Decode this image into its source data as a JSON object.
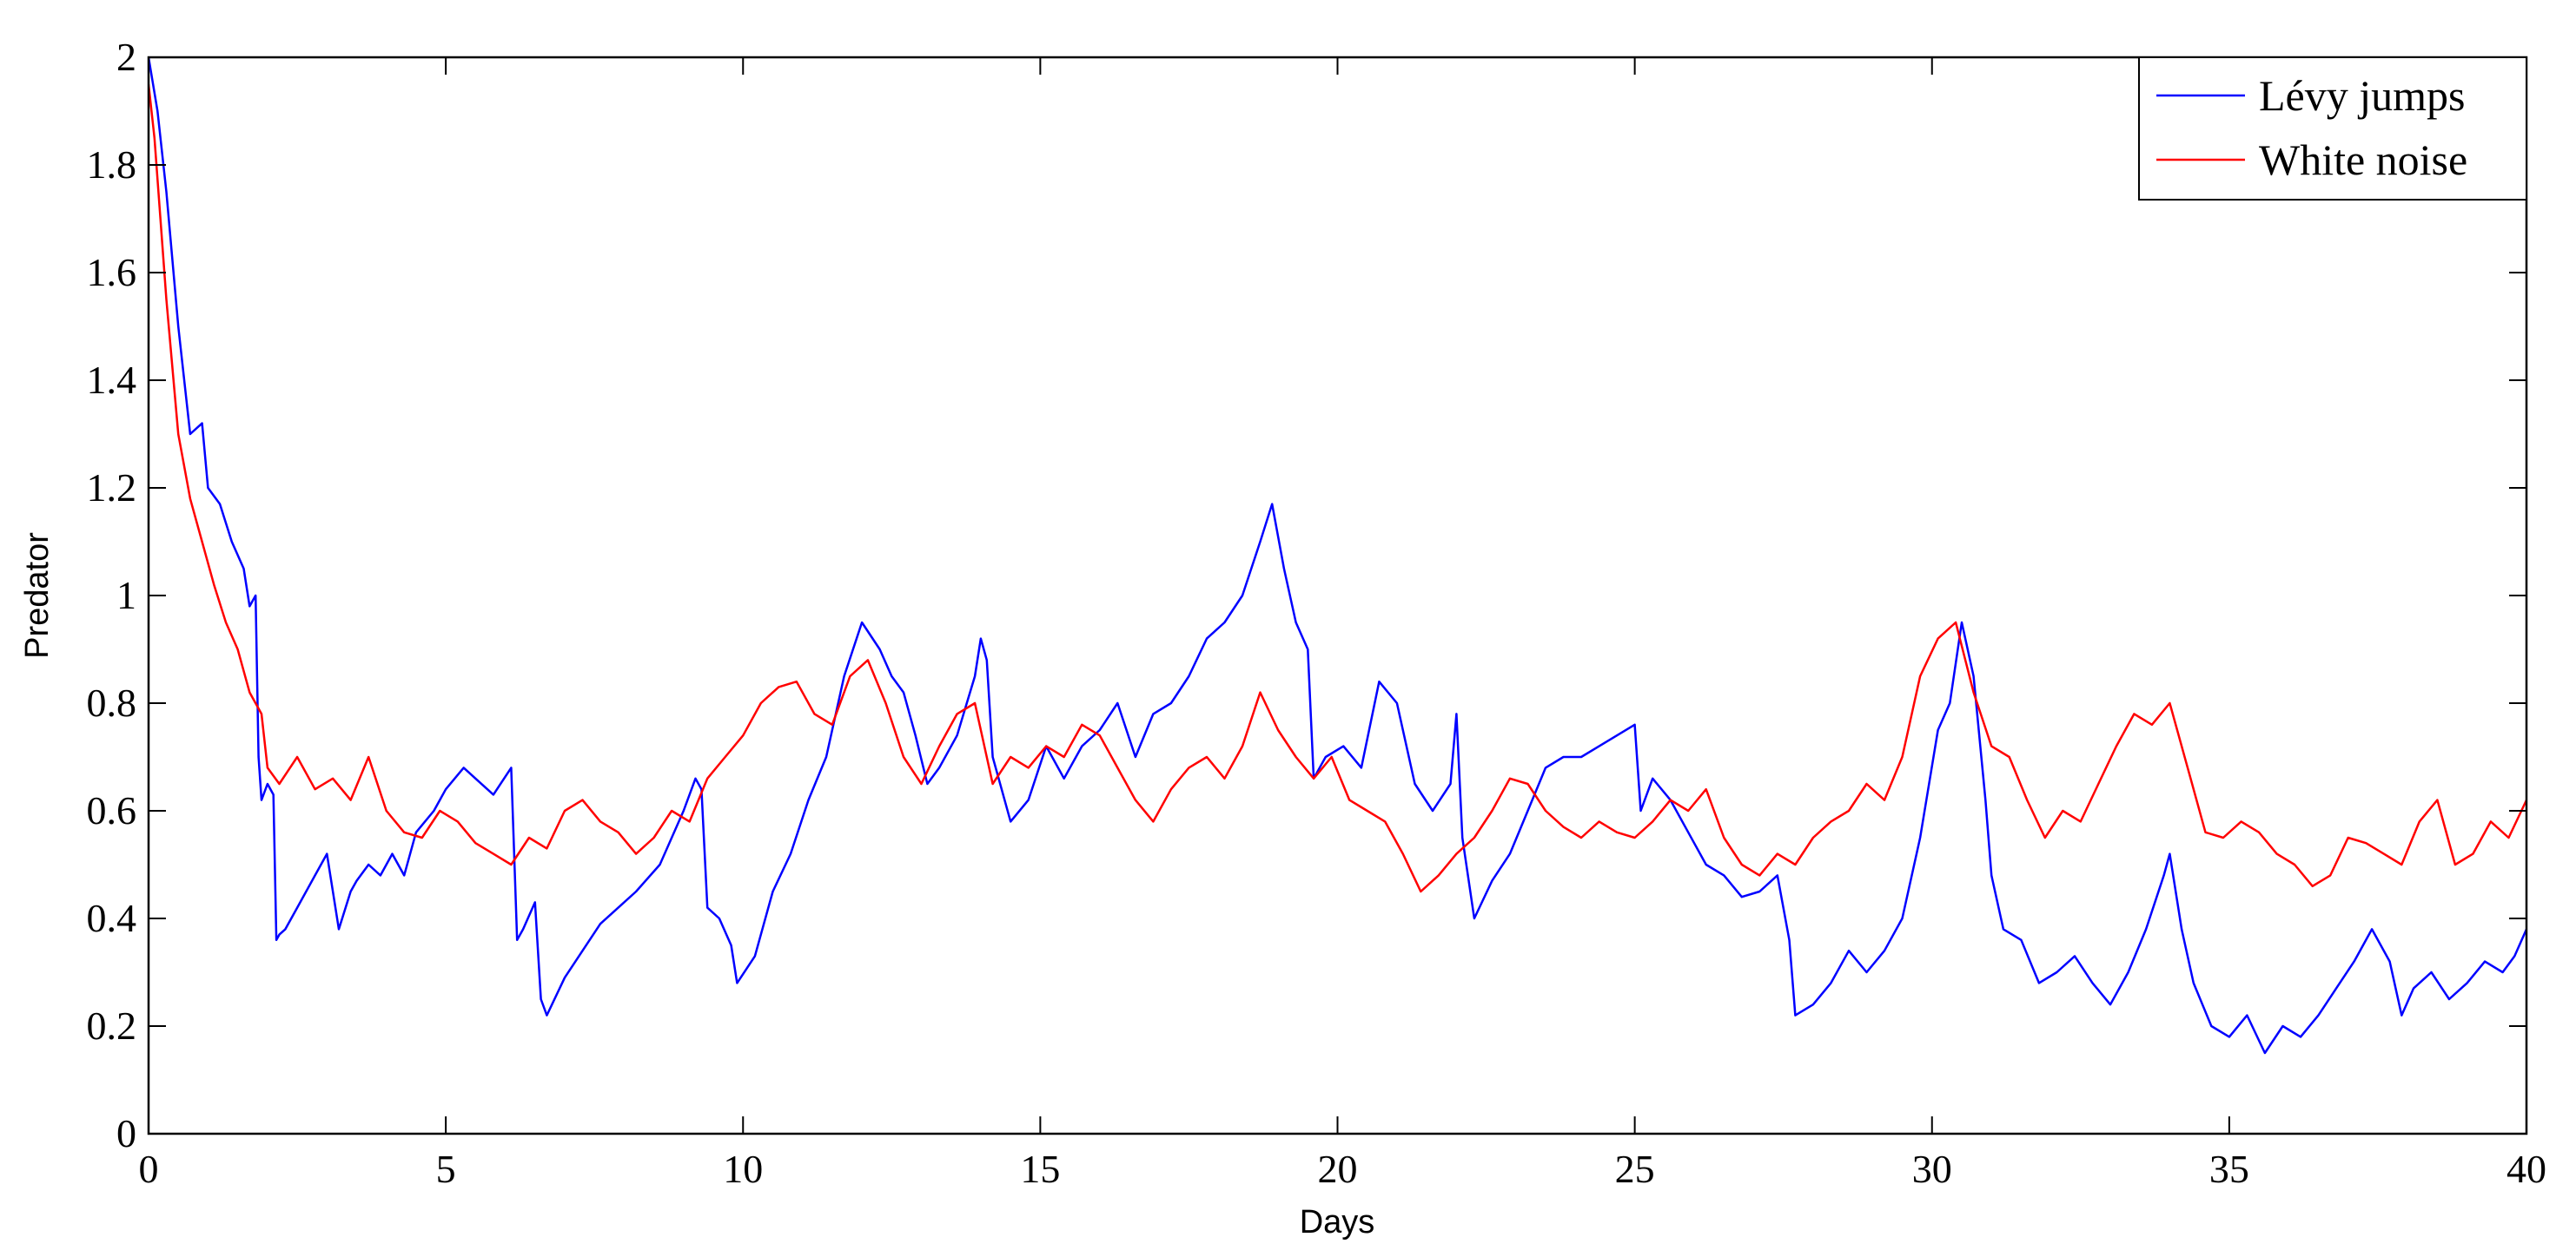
{
  "chart_data": {
    "type": "line",
    "xlabel": "Days",
    "ylabel": "Predator",
    "xlim": [
      0,
      40
    ],
    "ylim": [
      0,
      2
    ],
    "xticks": [
      0,
      5,
      10,
      15,
      20,
      25,
      30,
      35,
      40
    ],
    "xtick_labels": [
      "0",
      "5",
      "10",
      "15",
      "20",
      "25",
      "30",
      "35",
      "40"
    ],
    "yticks": [
      0,
      0.2,
      0.4,
      0.6,
      0.8,
      1.0,
      1.2,
      1.4,
      1.6,
      1.8,
      2.0
    ],
    "ytick_labels": [
      "0",
      "0.2",
      "0.4",
      "0.6",
      "0.8",
      "1",
      "1.2",
      "1.4",
      "1.6",
      "1.8",
      "2"
    ],
    "grid": false,
    "legend_position": "top-right",
    "series": [
      {
        "name": "Lévy jumps",
        "color": "#0000ff",
        "x": [
          0,
          0.15,
          0.3,
          0.5,
          0.7,
          0.9,
          1.0,
          1.2,
          1.4,
          1.6,
          1.7,
          1.8,
          1.85,
          1.9,
          2.0,
          2.1,
          2.15,
          2.2,
          2.3,
          2.5,
          2.8,
          3.0,
          3.2,
          3.4,
          3.5,
          3.7,
          3.9,
          4.1,
          4.3,
          4.5,
          4.8,
          5.0,
          5.3,
          5.5,
          5.8,
          6.1,
          6.2,
          6.3,
          6.5,
          6.6,
          6.7,
          7.0,
          7.3,
          7.6,
          7.9,
          8.2,
          8.6,
          9.0,
          9.2,
          9.3,
          9.4,
          9.6,
          9.8,
          9.9,
          10.2,
          10.5,
          10.8,
          11.1,
          11.4,
          11.7,
          12.0,
          12.3,
          12.5,
          12.7,
          12.9,
          13.1,
          13.3,
          13.6,
          13.9,
          14.0,
          14.1,
          14.2,
          14.5,
          14.8,
          15.1,
          15.4,
          15.7,
          16.0,
          16.3,
          16.6,
          16.9,
          17.2,
          17.5,
          17.8,
          18.1,
          18.4,
          18.7,
          18.9,
          19.1,
          19.3,
          19.5,
          19.6,
          19.8,
          20.1,
          20.4,
          20.7,
          21.0,
          21.3,
          21.6,
          21.9,
          22.0,
          22.1,
          22.3,
          22.6,
          22.9,
          23.2,
          23.5,
          23.8,
          24.1,
          24.4,
          24.7,
          25.0,
          25.1,
          25.3,
          25.6,
          25.9,
          26.2,
          26.5,
          26.8,
          27.1,
          27.4,
          27.6,
          27.7,
          28.0,
          28.3,
          28.6,
          28.9,
          29.2,
          29.5,
          29.8,
          30.1,
          30.3,
          30.5,
          30.7,
          30.9,
          31.0,
          31.2,
          31.5,
          31.8,
          32.1,
          32.4,
          32.7,
          33.0,
          33.3,
          33.6,
          33.9,
          34.0,
          34.2,
          34.4,
          34.7,
          35.0,
          35.3,
          35.6,
          35.9,
          36.2,
          36.5,
          36.8,
          37.1,
          37.4,
          37.7,
          37.9,
          38.1,
          38.4,
          38.7,
          39.0,
          39.3,
          39.6,
          39.8,
          40.0
        ],
        "y": [
          2.0,
          1.9,
          1.75,
          1.5,
          1.3,
          1.32,
          1.2,
          1.17,
          1.1,
          1.05,
          0.98,
          1.0,
          0.7,
          0.62,
          0.65,
          0.63,
          0.36,
          0.37,
          0.38,
          0.42,
          0.48,
          0.52,
          0.38,
          0.45,
          0.47,
          0.5,
          0.48,
          0.52,
          0.48,
          0.56,
          0.6,
          0.64,
          0.68,
          0.66,
          0.63,
          0.68,
          0.36,
          0.38,
          0.43,
          0.25,
          0.22,
          0.29,
          0.34,
          0.39,
          0.42,
          0.45,
          0.5,
          0.6,
          0.66,
          0.64,
          0.42,
          0.4,
          0.35,
          0.28,
          0.33,
          0.45,
          0.52,
          0.62,
          0.7,
          0.85,
          0.95,
          0.9,
          0.85,
          0.82,
          0.74,
          0.65,
          0.68,
          0.74,
          0.85,
          0.92,
          0.88,
          0.7,
          0.58,
          0.62,
          0.72,
          0.66,
          0.72,
          0.75,
          0.8,
          0.7,
          0.78,
          0.8,
          0.85,
          0.92,
          0.95,
          1.0,
          1.1,
          1.17,
          1.05,
          0.95,
          0.9,
          0.66,
          0.7,
          0.72,
          0.68,
          0.84,
          0.8,
          0.65,
          0.6,
          0.65,
          0.78,
          0.55,
          0.4,
          0.47,
          0.52,
          0.6,
          0.68,
          0.7,
          0.7,
          0.72,
          0.74,
          0.76,
          0.6,
          0.66,
          0.62,
          0.56,
          0.5,
          0.48,
          0.44,
          0.45,
          0.48,
          0.36,
          0.22,
          0.24,
          0.28,
          0.34,
          0.3,
          0.34,
          0.4,
          0.55,
          0.75,
          0.8,
          0.95,
          0.85,
          0.62,
          0.48,
          0.38,
          0.36,
          0.28,
          0.3,
          0.33,
          0.28,
          0.24,
          0.3,
          0.38,
          0.48,
          0.52,
          0.38,
          0.28,
          0.2,
          0.18,
          0.22,
          0.15,
          0.2,
          0.18,
          0.22,
          0.27,
          0.32,
          0.38,
          0.32,
          0.22,
          0.27,
          0.3,
          0.25,
          0.28,
          0.32,
          0.3,
          0.33,
          0.38
        ]
      },
      {
        "name": "White noise",
        "color": "#ff0000",
        "x": [
          0,
          0.1,
          0.3,
          0.5,
          0.7,
          0.9,
          1.1,
          1.3,
          1.5,
          1.7,
          1.9,
          2.0,
          2.2,
          2.5,
          2.8,
          3.1,
          3.4,
          3.7,
          4.0,
          4.3,
          4.6,
          4.9,
          5.2,
          5.5,
          5.8,
          6.1,
          6.4,
          6.7,
          7.0,
          7.3,
          7.6,
          7.9,
          8.2,
          8.5,
          8.8,
          9.1,
          9.4,
          9.7,
          10.0,
          10.3,
          10.6,
          10.9,
          11.2,
          11.5,
          11.8,
          12.1,
          12.4,
          12.7,
          13.0,
          13.3,
          13.6,
          13.9,
          14.2,
          14.5,
          14.8,
          15.1,
          15.4,
          15.7,
          16.0,
          16.3,
          16.6,
          16.9,
          17.2,
          17.5,
          17.8,
          18.1,
          18.4,
          18.7,
          19.0,
          19.3,
          19.6,
          19.9,
          20.2,
          20.5,
          20.8,
          21.1,
          21.4,
          21.7,
          22.0,
          22.3,
          22.6,
          22.9,
          23.2,
          23.5,
          23.8,
          24.1,
          24.4,
          24.7,
          25.0,
          25.3,
          25.6,
          25.9,
          26.2,
          26.5,
          26.8,
          27.1,
          27.4,
          27.7,
          28.0,
          28.3,
          28.6,
          28.9,
          29.2,
          29.5,
          29.8,
          30.1,
          30.4,
          30.7,
          31.0,
          31.3,
          31.6,
          31.9,
          32.2,
          32.5,
          32.8,
          33.1,
          33.4,
          33.7,
          34.0,
          34.3,
          34.6,
          34.9,
          35.2,
          35.5,
          35.8,
          36.1,
          36.4,
          36.7,
          37.0,
          37.3,
          37.6,
          37.9,
          38.2,
          38.5,
          38.8,
          39.1,
          39.4,
          39.7,
          40.0
        ],
        "y": [
          1.95,
          1.85,
          1.55,
          1.3,
          1.18,
          1.1,
          1.02,
          0.95,
          0.9,
          0.82,
          0.78,
          0.68,
          0.65,
          0.7,
          0.64,
          0.66,
          0.62,
          0.7,
          0.6,
          0.56,
          0.55,
          0.6,
          0.58,
          0.54,
          0.52,
          0.5,
          0.55,
          0.53,
          0.6,
          0.62,
          0.58,
          0.56,
          0.52,
          0.55,
          0.6,
          0.58,
          0.66,
          0.7,
          0.74,
          0.8,
          0.83,
          0.84,
          0.78,
          0.76,
          0.85,
          0.88,
          0.8,
          0.7,
          0.65,
          0.72,
          0.78,
          0.8,
          0.65,
          0.7,
          0.68,
          0.72,
          0.7,
          0.76,
          0.74,
          0.68,
          0.62,
          0.58,
          0.64,
          0.68,
          0.7,
          0.66,
          0.72,
          0.82,
          0.75,
          0.7,
          0.66,
          0.7,
          0.62,
          0.6,
          0.58,
          0.52,
          0.45,
          0.48,
          0.52,
          0.55,
          0.6,
          0.66,
          0.65,
          0.6,
          0.57,
          0.55,
          0.58,
          0.56,
          0.55,
          0.58,
          0.62,
          0.6,
          0.64,
          0.55,
          0.5,
          0.48,
          0.52,
          0.5,
          0.55,
          0.58,
          0.6,
          0.65,
          0.62,
          0.7,
          0.85,
          0.92,
          0.95,
          0.82,
          0.72,
          0.7,
          0.62,
          0.55,
          0.6,
          0.58,
          0.65,
          0.72,
          0.78,
          0.76,
          0.8,
          0.68,
          0.56,
          0.55,
          0.58,
          0.56,
          0.52,
          0.5,
          0.46,
          0.48,
          0.55,
          0.54,
          0.52,
          0.5,
          0.58,
          0.62,
          0.5,
          0.52,
          0.58,
          0.55,
          0.62
        ]
      }
    ]
  }
}
